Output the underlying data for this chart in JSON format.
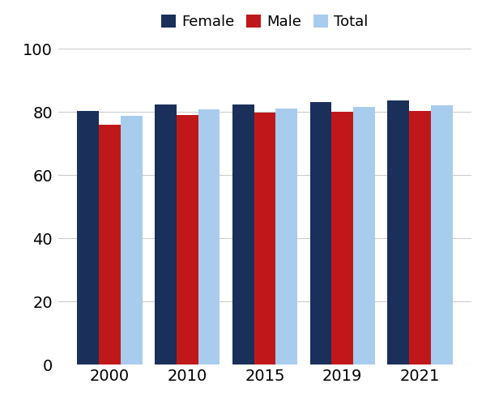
{
  "categories": [
    "2000",
    "2010",
    "2015",
    "2019",
    "2021"
  ],
  "female": [
    80.3,
    82.4,
    82.4,
    83.2,
    83.7
  ],
  "male": [
    75.8,
    79.1,
    79.7,
    80.1,
    80.2
  ],
  "total": [
    78.7,
    80.7,
    81.1,
    81.6,
    82.0
  ],
  "colors": {
    "female": "#1a2f5a",
    "male": "#c0181a",
    "total": "#a8ccee"
  },
  "legend_labels": [
    "Female",
    "Male",
    "Total"
  ],
  "ylim": [
    0,
    100
  ],
  "yticks": [
    0,
    20,
    40,
    60,
    80,
    100
  ],
  "bar_width": 0.28,
  "grid_color": "#cccccc",
  "background_color": "#ffffff",
  "tick_fontsize": 14,
  "legend_fontsize": 13
}
